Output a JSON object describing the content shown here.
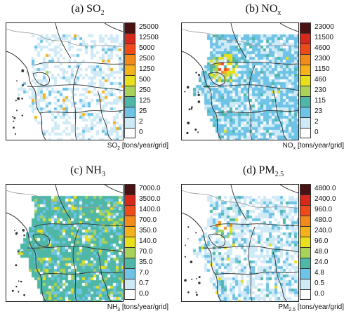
{
  "panels": [
    {
      "id": "so2",
      "title_prefix": "(a) SO",
      "title_sub": "2",
      "title_suffix": "",
      "unit_main": "SO",
      "unit_sub": "2",
      "unit_rest": " [tons/year/grid]",
      "ticks": [
        "25000",
        "12500",
        "5000",
        "2500",
        "1250",
        "500",
        "250",
        "125",
        "25",
        "2",
        "0"
      ],
      "density": "sparse"
    },
    {
      "id": "nox",
      "title_prefix": "(b) NO",
      "title_sub": "x",
      "title_suffix": "",
      "unit_main": "NO",
      "unit_sub": "x",
      "unit_rest": " [tons/year/grid]",
      "ticks": [
        "23000",
        "11500",
        "4600",
        "2300",
        "1150",
        "460",
        "230",
        "115",
        "23",
        "2",
        "0"
      ],
      "density": "dense"
    },
    {
      "id": "nh3",
      "title_prefix": "(c) NH",
      "title_sub": "3",
      "title_suffix": "",
      "unit_main": "NH",
      "unit_sub": "3",
      "unit_rest": " [tons/year/grid]",
      "ticks": [
        "7000.0",
        "3500.0",
        "1400.0",
        "700.0",
        "350.0",
        "140.0",
        "70.0",
        "35.0",
        "7.0",
        "0.7",
        "0.0"
      ],
      "density": "agri"
    },
    {
      "id": "pm25",
      "title_prefix": "(d) PM",
      "title_sub": "2.5",
      "title_suffix": "",
      "unit_main": "PM",
      "unit_sub": "2.5",
      "unit_rest": " [tons/year/grid]",
      "ticks": [
        "4800.0",
        "2400.0",
        "960.0",
        "480.0",
        "240.0",
        "96.0",
        "48.0",
        "24.0",
        "4.8",
        "0.5",
        "0.0"
      ],
      "density": "medium"
    }
  ],
  "colorbar": [
    "#4a1212",
    "#d7281c",
    "#f04a1a",
    "#f28a1c",
    "#f5b21a",
    "#e8e01c",
    "#a9d25a",
    "#4fb7a6",
    "#6ec3e6",
    "#cfeaf6",
    "#ffffff"
  ]
}
